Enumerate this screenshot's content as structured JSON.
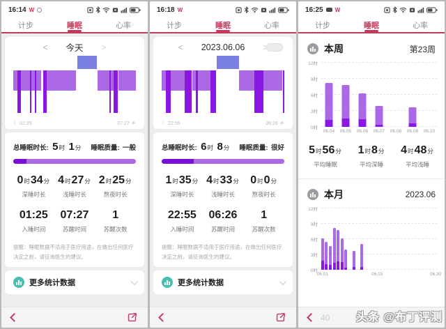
{
  "shared": {
    "w_badge": "W",
    "tabs": [
      "计步",
      "睡眠",
      "心率"
    ],
    "nav_prev": "<",
    "nav_next": ">",
    "total_label": "总睡眠时长:",
    "quality_label": "睡眠质量:",
    "hour": "时",
    "min": "分",
    "labels_row1": [
      "深睡时长",
      "浅睡时长",
      "熬夜时长"
    ],
    "labels_row2": [
      "入睡时间",
      "苏醒时间",
      "苏醒次数"
    ],
    "disclaimer": "提醒：睡眠数据不适用于医疗用途，在做出任何医疗决定之前，请征询医生的建议。",
    "more_stats": "更多统计数据",
    "moon_icon": "☾",
    "sun_icon": "☀"
  },
  "colors": {
    "accent": "#C23A5C",
    "light_sleep": "#AC69E6",
    "deep_sleep": "#8A17E2",
    "awake": "#7A80E2",
    "progress_deep": "#7A10D8",
    "teal": "#49BFB2"
  },
  "watermark": {
    "brand": "头条 @布丁评测",
    "faint": "40"
  },
  "panels": [
    {
      "time": "16:14",
      "nav_title": "今天",
      "sleep_start": "01:25",
      "sleep_end": "07:27",
      "total_h": "5",
      "total_m": "1",
      "quality": "一般",
      "deep_pct": 11,
      "row1": [
        {
          "h": "0",
          "m": "34"
        },
        {
          "h": "4",
          "m": "27"
        },
        {
          "h": "2",
          "m": "25"
        }
      ],
      "row2": [
        "01:25",
        "07:27",
        "1"
      ]
    },
    {
      "time": "16:18",
      "nav_title": "2023.06.06",
      "sleep_start": "22:55",
      "sleep_end": "06:26",
      "total_h": "6",
      "total_m": "8",
      "quality": "很好",
      "deep_pct": 26,
      "row1": [
        {
          "h": "1",
          "m": "35"
        },
        {
          "h": "4",
          "m": "33"
        },
        {
          "h": "0",
          "m": "0"
        }
      ],
      "row2": [
        "22:55",
        "06:26",
        "1"
      ]
    },
    {
      "time": "16:25",
      "week": {
        "title": "本周",
        "badge": "第23周",
        "stats": [
          {
            "h": "5",
            "m": "56",
            "label": "平均睡眠"
          },
          {
            "h": "1",
            "m": "8",
            "label": "平均深睡"
          },
          {
            "h": "4",
            "m": "48",
            "label": "平均浅睡"
          }
        ]
      },
      "month": {
        "title": "本月",
        "badge": "2023.06"
      }
    }
  ],
  "chart_data": [
    {
      "type": "hypnogram",
      "panel": "今天",
      "start": "01:25",
      "end": "07:27",
      "levels": [
        "awake",
        "light",
        "deep"
      ],
      "segments": [
        {
          "x": 0,
          "w": 3.5,
          "level": "light"
        },
        {
          "x": 3.5,
          "w": 2.5,
          "level": "deep"
        },
        {
          "x": 6,
          "w": 7.5,
          "level": "light"
        },
        {
          "x": 13.5,
          "w": 1,
          "level": "deep"
        },
        {
          "x": 14.5,
          "w": 3,
          "level": "light"
        },
        {
          "x": 17.5,
          "w": 1,
          "level": "deep"
        },
        {
          "x": 18.5,
          "w": 4.5,
          "level": "light"
        },
        {
          "x": 24.5,
          "w": 3,
          "level": "deep"
        },
        {
          "x": 27.5,
          "w": 23.5,
          "level": "light"
        },
        {
          "x": 52,
          "w": 16,
          "level": "awake"
        },
        {
          "x": 69,
          "w": 9.5,
          "level": "light"
        },
        {
          "x": 78.5,
          "w": 0.8,
          "level": "deep"
        },
        {
          "x": 79.3,
          "w": 2.7,
          "level": "light"
        },
        {
          "x": 82,
          "w": 3,
          "level": "deep"
        },
        {
          "x": 86,
          "w": 14,
          "level": "light"
        }
      ]
    },
    {
      "type": "hypnogram",
      "panel": "2023.06.06",
      "start": "22:55",
      "end": "06:26",
      "levels": [
        "awake",
        "light",
        "deep"
      ],
      "segments": [
        {
          "x": 0,
          "w": 3.6,
          "level": "light"
        },
        {
          "x": 3.6,
          "w": 3.6,
          "level": "deep"
        },
        {
          "x": 7.2,
          "w": 11.7,
          "level": "light"
        },
        {
          "x": 18.9,
          "w": 5.4,
          "level": "deep"
        },
        {
          "x": 25.2,
          "w": 2.7,
          "level": "light"
        },
        {
          "x": 27.9,
          "w": 1.8,
          "level": "deep"
        },
        {
          "x": 29.7,
          "w": 9.9,
          "level": "light"
        },
        {
          "x": 39.6,
          "w": 4.6,
          "level": "deep"
        },
        {
          "x": 45,
          "w": 18,
          "level": "awake"
        },
        {
          "x": 63.1,
          "w": 12.6,
          "level": "light"
        },
        {
          "x": 75.7,
          "w": 7.2,
          "level": "deep"
        },
        {
          "x": 82.9,
          "w": 15.3,
          "level": "light"
        },
        {
          "x": 99.1,
          "w": 0.9,
          "level": "deep"
        }
      ]
    },
    {
      "type": "bar",
      "title": "本周",
      "subtitle": "第23周",
      "categories": [
        "06.04",
        "06.05",
        "06.06",
        "06.07",
        "06.08",
        "06.09",
        "06.10"
      ],
      "series": [
        {
          "name": "深睡",
          "values": [
            1.3,
            1.6,
            1.5,
            0.4,
            0,
            0.6,
            0
          ]
        },
        {
          "name": "浅睡",
          "values": [
            6.9,
            6.2,
            4.7,
            3.5,
            0,
            3.1,
            0
          ]
        }
      ],
      "yticks": [
        "0时",
        "3时",
        "6时",
        "9时",
        "12时"
      ],
      "ylim": [
        0,
        12
      ],
      "grid": "dashed-horizontal",
      "unit": "时"
    },
    {
      "type": "bar",
      "title": "本月",
      "subtitle": "2023.06",
      "categories": [
        "06.01",
        "06.02",
        "06.03",
        "06.04",
        "06.05",
        "06.06",
        "06.07",
        "06.08",
        "06.09",
        "06.10",
        "06.11",
        "06.12",
        "06.13",
        "06.14",
        "06.15",
        "06.16",
        "06.17",
        "06.18",
        "06.19",
        "06.20",
        "06.21",
        "06.22",
        "06.23",
        "06.24",
        "06.25",
        "06.26",
        "06.27",
        "06.28",
        "06.29",
        "06.30"
      ],
      "series": [
        {
          "name": "深睡",
          "values": [
            1.8,
            1.1,
            1.0,
            1.3,
            1.6,
            1.5,
            0.4,
            0,
            0.6,
            0,
            0.5,
            0,
            0,
            0,
            0,
            0,
            0,
            0,
            0,
            0,
            0,
            0,
            0,
            0,
            0,
            0,
            0,
            0,
            0,
            0
          ]
        },
        {
          "name": "浅睡",
          "values": [
            4.4,
            4.3,
            3.7,
            6.9,
            6.2,
            4.7,
            3.5,
            0,
            3.1,
            0,
            4.5,
            0,
            0,
            0,
            0,
            0,
            0,
            0,
            0,
            0,
            0,
            0,
            0,
            0,
            0,
            0,
            0,
            0,
            0,
            0
          ]
        }
      ],
      "x_ticks_shown": [
        "06.01",
        "06.15",
        "06.30"
      ],
      "yticks": [
        "0时",
        "3时",
        "6时",
        "9时",
        "12时"
      ],
      "ylim": [
        0,
        12
      ],
      "grid": "dashed-horizontal",
      "unit": "时"
    }
  ]
}
